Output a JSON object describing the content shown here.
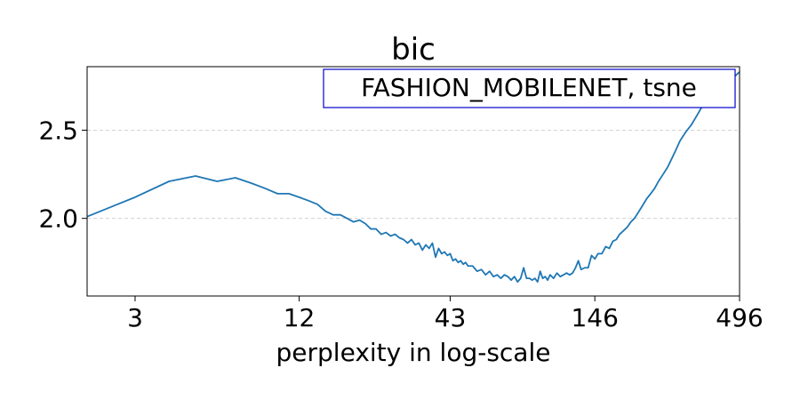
{
  "chart_data": {
    "type": "line",
    "title": "bic",
    "xlabel": "perplexity in log-scale",
    "ylabel": "",
    "x_scale": "log",
    "xlim": [
      2,
      496
    ],
    "ylim": [
      1.56,
      2.86
    ],
    "x_ticks": [
      3,
      12,
      43,
      146,
      496
    ],
    "x_tick_labels": [
      "3",
      "12",
      "43",
      "146",
      "496"
    ],
    "y_ticks": [
      2.0,
      2.5
    ],
    "y_tick_labels": [
      "2.0",
      "2.5"
    ],
    "grid": "y-dashed",
    "annotation": "FASHION_MOBILENET, tsne",
    "annotation_placement": "top-right",
    "series_color": "#1f77b4",
    "annotation_border_color": "#0000cc",
    "series": [
      {
        "name": "",
        "x": [
          2,
          3,
          4,
          5,
          6,
          7,
          8,
          9,
          10,
          11,
          12,
          13,
          14,
          15,
          16,
          17,
          18,
          19,
          20,
          21,
          22,
          23,
          24,
          25,
          26,
          27,
          28,
          29,
          30,
          31,
          32,
          33,
          34,
          35,
          36,
          37,
          38,
          39,
          40,
          41,
          42,
          43,
          44,
          45,
          46,
          47,
          48,
          49,
          50,
          52,
          54,
          56,
          58,
          60,
          62,
          64,
          66,
          68,
          70,
          72,
          74,
          76,
          78,
          80,
          82,
          84,
          86,
          88,
          90,
          92,
          94,
          96,
          98,
          100,
          103,
          106,
          109,
          112,
          115,
          118,
          121,
          124,
          127,
          130,
          134,
          138,
          142,
          146,
          150,
          155,
          160,
          165,
          170,
          175,
          180,
          186,
          192,
          198,
          204,
          210,
          218,
          226,
          234,
          242,
          250,
          260,
          270,
          280,
          290,
          300,
          315,
          330,
          345,
          360,
          380,
          400,
          420,
          440,
          460,
          480,
          496
        ],
        "values": [
          2.01,
          2.12,
          2.21,
          2.24,
          2.21,
          2.23,
          2.2,
          2.17,
          2.14,
          2.14,
          2.12,
          2.1,
          2.08,
          2.04,
          2.02,
          2.02,
          2.0,
          1.98,
          1.99,
          1.97,
          1.94,
          1.94,
          1.91,
          1.92,
          1.9,
          1.91,
          1.89,
          1.88,
          1.86,
          1.88,
          1.85,
          1.86,
          1.82,
          1.85,
          1.83,
          1.86,
          1.78,
          1.83,
          1.8,
          1.81,
          1.79,
          1.8,
          1.76,
          1.77,
          1.75,
          1.76,
          1.74,
          1.75,
          1.73,
          1.73,
          1.7,
          1.71,
          1.68,
          1.7,
          1.67,
          1.68,
          1.66,
          1.68,
          1.67,
          1.65,
          1.67,
          1.64,
          1.66,
          1.72,
          1.66,
          1.66,
          1.65,
          1.66,
          1.64,
          1.7,
          1.66,
          1.67,
          1.65,
          1.68,
          1.66,
          1.69,
          1.67,
          1.68,
          1.69,
          1.68,
          1.69,
          1.72,
          1.76,
          1.71,
          1.72,
          1.72,
          1.79,
          1.77,
          1.8,
          1.8,
          1.84,
          1.83,
          1.87,
          1.88,
          1.91,
          1.93,
          1.95,
          1.98,
          2.0,
          2.03,
          2.07,
          2.11,
          2.14,
          2.17,
          2.21,
          2.25,
          2.29,
          2.34,
          2.39,
          2.44,
          2.49,
          2.53,
          2.58,
          2.63,
          2.67,
          2.71,
          2.74,
          2.77,
          2.79,
          2.81,
          2.83
        ]
      }
    ]
  }
}
